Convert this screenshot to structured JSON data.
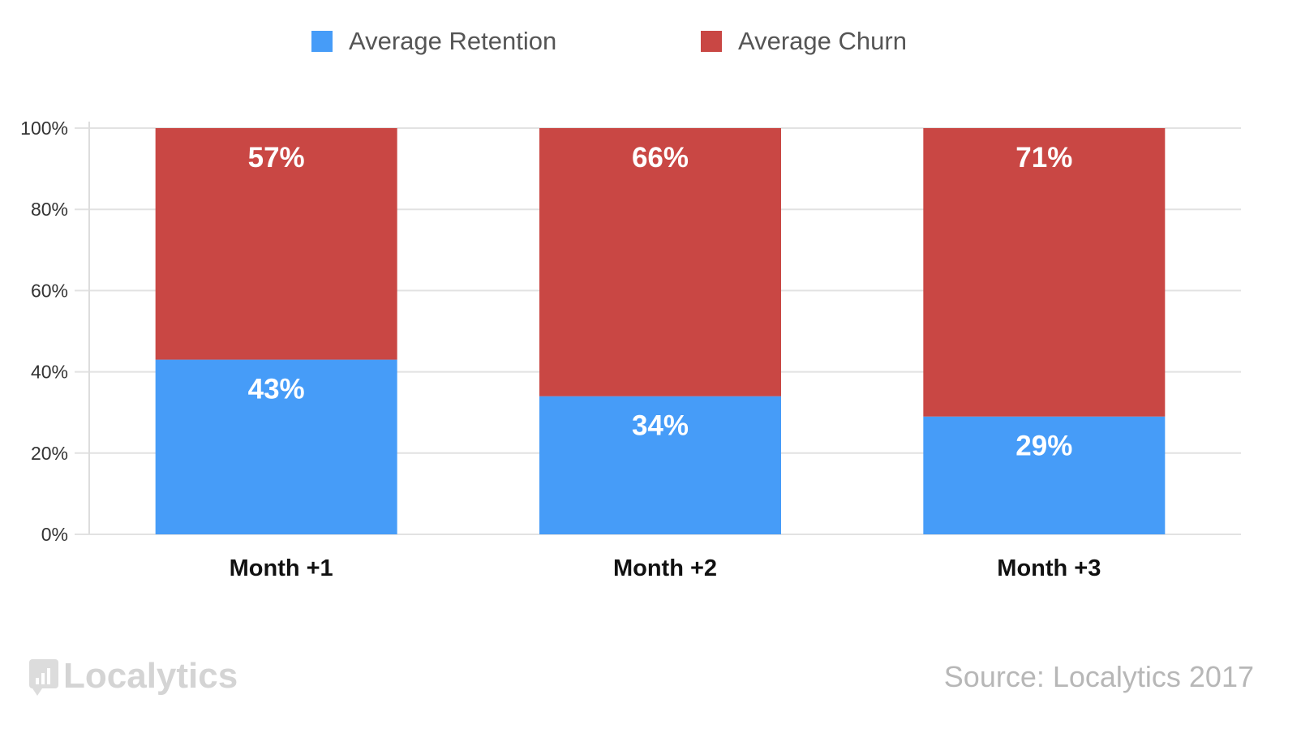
{
  "chart_data": {
    "type": "bar",
    "stacked": true,
    "categories": [
      "Month +1",
      "Month +2",
      "Month +3"
    ],
    "series": [
      {
        "name": "Average Retention",
        "color": "#469cf8",
        "values": [
          43,
          34,
          29
        ],
        "labels": [
          "43%",
          "34%",
          "29%"
        ]
      },
      {
        "name": "Average Churn",
        "color": "#c94744",
        "values": [
          57,
          66,
          71
        ],
        "labels": [
          "57%",
          "66%",
          "71%"
        ]
      }
    ],
    "ylim": [
      0,
      100
    ],
    "yticks": [
      0,
      20,
      40,
      60,
      80,
      100
    ],
    "ytick_labels": [
      "0%",
      "20%",
      "40%",
      "60%",
      "80%",
      "100%"
    ],
    "grid": true,
    "legend_position": "top"
  },
  "footer": {
    "logo_text": "Localytics",
    "source": "Source: Localytics 2017"
  }
}
